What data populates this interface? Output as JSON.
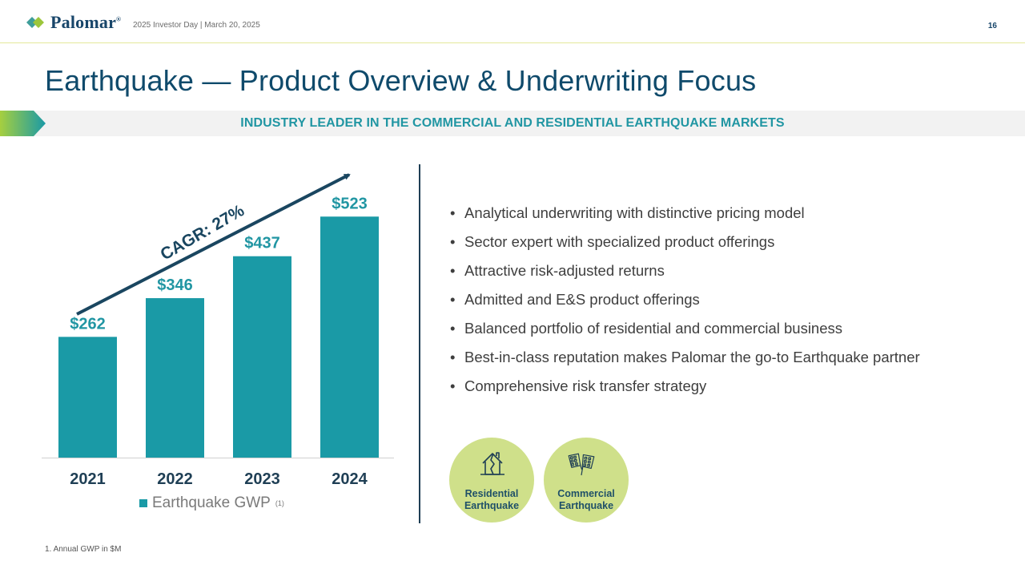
{
  "header": {
    "logo_text": "Palomar",
    "subline": "2025 Investor Day | March 20, 2025",
    "page_number": "16"
  },
  "title": "Earthquake — Product Overview & Underwriting Focus",
  "banner": "INDUSTRY LEADER IN THE COMMERCIAL AND RESIDENTIAL EARTHQUAKE MARKETS",
  "chart_data": {
    "type": "bar",
    "categories": [
      "2021",
      "2022",
      "2023",
      "2024"
    ],
    "values": [
      262,
      346,
      437,
      523
    ],
    "data_labels": [
      "$262",
      "$346",
      "$437",
      "$523"
    ],
    "series": [
      {
        "name": "Earthquake GWP",
        "values": [
          262,
          346,
          437,
          523
        ]
      }
    ],
    "legend_label": "Earthquake GWP",
    "legend_footnote_ref": "(1)",
    "annotation": "CAGR: 27%",
    "ylim": [
      0,
      600
    ],
    "grid": false,
    "legend_position": "bottom",
    "bar_color": "#1a9aa6",
    "label_color": "#2196a3",
    "arrow_color": "#1a4660"
  },
  "bullets": [
    "Analytical underwriting with distinctive pricing model",
    "Sector expert with specialized product offerings",
    "Attractive risk-adjusted returns",
    "Admitted and E&S product offerings",
    "Balanced portfolio of residential and commercial business",
    "Best-in-class reputation makes Palomar the go-to Earthquake partner",
    "Comprehensive risk transfer strategy"
  ],
  "badges": [
    {
      "line1": "Residential",
      "line2": "Earthquake",
      "icon": "cracked-house-icon"
    },
    {
      "line1": "Commercial",
      "line2": "Earthquake",
      "icon": "collapsed-buildings-icon"
    }
  ],
  "footnote": "1. Annual GWP in $M",
  "colors": {
    "navy": "#0f4a6b",
    "teal": "#2196a3",
    "lime": "#cfe08a"
  }
}
